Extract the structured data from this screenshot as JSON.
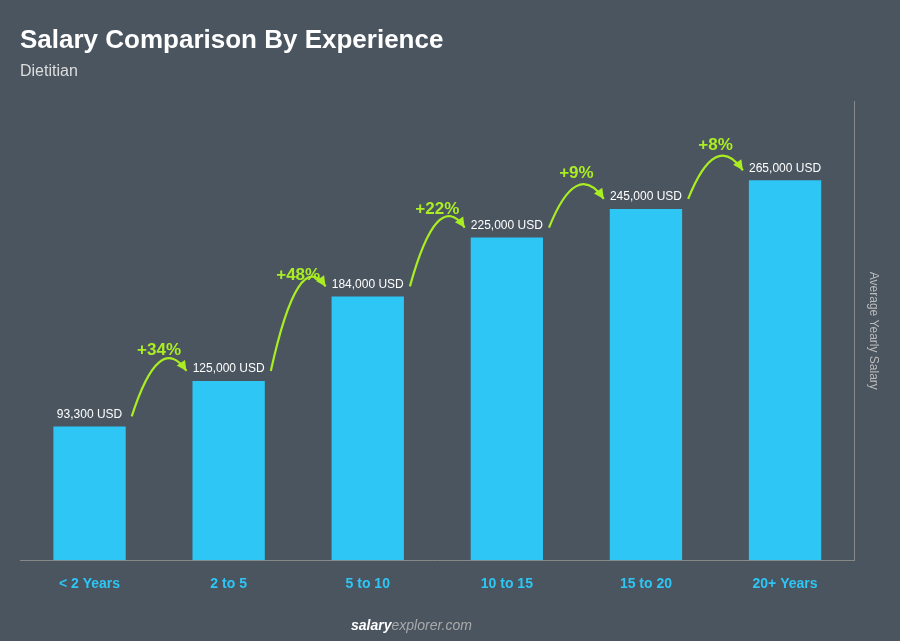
{
  "chart_data": {
    "type": "bar",
    "title": "Salary Comparison By Experience",
    "subtitle": "Dietitian",
    "ylabel": "Average Yearly Salary",
    "footer": [
      "salary",
      "explorer.com"
    ],
    "categories": [
      "< 2 Years",
      "2 to 5",
      "5 to 10",
      "10 to 15",
      "15 to 20",
      "20+ Years"
    ],
    "values": [
      93300,
      125000,
      184000,
      225000,
      245000,
      265000
    ],
    "value_labels": [
      "93,300 USD",
      "125,000 USD",
      "184,000 USD",
      "225,000 USD",
      "245,000 USD",
      "265,000 USD"
    ],
    "data_labels": true,
    "annotations": [
      "+34%",
      "+48%",
      "+22%",
      "+9%",
      "+8%"
    ],
    "color": "#2ec6f5",
    "ylim": [
      0,
      320000
    ],
    "grid": false,
    "tick_labels": "x"
  }
}
